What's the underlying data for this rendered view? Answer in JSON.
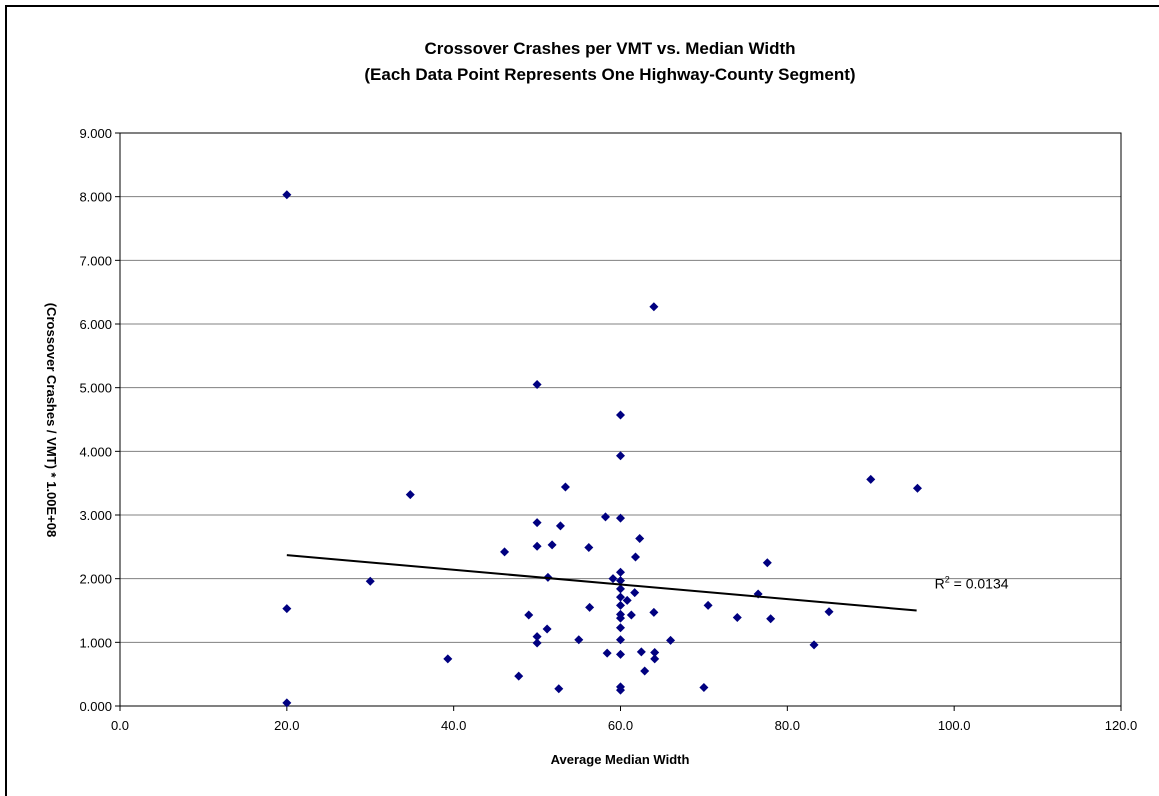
{
  "chart_data": {
    "type": "scatter",
    "title": "Crossover Crashes per VMT vs. Median Width",
    "subtitle": "(Each Data Point Represents One Highway-County Segment)",
    "xlabel": "Average Median Width",
    "ylabel": "(Crossover Crashes / VMT) * 1.00E+08",
    "xlim": [
      0,
      120
    ],
    "ylim": [
      0,
      9
    ],
    "x_ticks": [
      "0.0",
      "20.0",
      "40.0",
      "60.0",
      "80.0",
      "100.0",
      "120.0"
    ],
    "y_ticks": [
      "0.000",
      "1.000",
      "2.000",
      "3.000",
      "4.000",
      "5.000",
      "6.000",
      "7.000",
      "8.000",
      "9.000"
    ],
    "grid": "horizontal",
    "legend": "none",
    "marker_color": "#000080",
    "trendline": {
      "type": "linear",
      "x": [
        20,
        95.5
      ],
      "y": [
        2.37,
        1.5
      ],
      "r2_label": "R",
      "r2_sup": "2",
      "r2_value": " = 0.0134",
      "color": "#000000"
    },
    "points": [
      {
        "x": 20,
        "y": 8.03
      },
      {
        "x": 20,
        "y": 1.53
      },
      {
        "x": 20,
        "y": 0.05
      },
      {
        "x": 30,
        "y": 1.96
      },
      {
        "x": 34.8,
        "y": 3.32
      },
      {
        "x": 39.3,
        "y": 0.74
      },
      {
        "x": 46.1,
        "y": 2.42
      },
      {
        "x": 47.8,
        "y": 0.47
      },
      {
        "x": 49,
        "y": 1.43
      },
      {
        "x": 50,
        "y": 5.05
      },
      {
        "x": 50,
        "y": 2.88
      },
      {
        "x": 50,
        "y": 2.51
      },
      {
        "x": 50,
        "y": 1.09
      },
      {
        "x": 50,
        "y": 0.99
      },
      {
        "x": 51.2,
        "y": 1.21
      },
      {
        "x": 51.3,
        "y": 2.02
      },
      {
        "x": 51.8,
        "y": 2.53
      },
      {
        "x": 52.6,
        "y": 0.27
      },
      {
        "x": 52.8,
        "y": 2.83
      },
      {
        "x": 53.4,
        "y": 3.44
      },
      {
        "x": 55,
        "y": 1.04
      },
      {
        "x": 56.2,
        "y": 2.49
      },
      {
        "x": 56.3,
        "y": 1.55
      },
      {
        "x": 58.2,
        "y": 2.97
      },
      {
        "x": 58.4,
        "y": 0.83
      },
      {
        "x": 59.1,
        "y": 2.0
      },
      {
        "x": 60,
        "y": 4.57
      },
      {
        "x": 60,
        "y": 3.93
      },
      {
        "x": 60,
        "y": 2.95
      },
      {
        "x": 60,
        "y": 2.1
      },
      {
        "x": 60,
        "y": 1.97
      },
      {
        "x": 60,
        "y": 1.84
      },
      {
        "x": 60,
        "y": 1.71
      },
      {
        "x": 60,
        "y": 1.58
      },
      {
        "x": 60,
        "y": 1.44
      },
      {
        "x": 60,
        "y": 1.38
      },
      {
        "x": 60,
        "y": 1.23
      },
      {
        "x": 60,
        "y": 1.04
      },
      {
        "x": 60,
        "y": 0.81
      },
      {
        "x": 60,
        "y": 0.3
      },
      {
        "x": 60,
        "y": 0.25
      },
      {
        "x": 60.8,
        "y": 1.66
      },
      {
        "x": 61.3,
        "y": 1.43
      },
      {
        "x": 61.7,
        "y": 1.78
      },
      {
        "x": 61.8,
        "y": 2.34
      },
      {
        "x": 62.3,
        "y": 2.63
      },
      {
        "x": 62.5,
        "y": 0.85
      },
      {
        "x": 62.9,
        "y": 0.55
      },
      {
        "x": 64,
        "y": 6.27
      },
      {
        "x": 64,
        "y": 1.47
      },
      {
        "x": 64.1,
        "y": 0.84
      },
      {
        "x": 64.1,
        "y": 0.74
      },
      {
        "x": 66,
        "y": 1.03
      },
      {
        "x": 70,
        "y": 0.29
      },
      {
        "x": 70.5,
        "y": 1.58
      },
      {
        "x": 74,
        "y": 1.39
      },
      {
        "x": 76.5,
        "y": 1.76
      },
      {
        "x": 77.6,
        "y": 2.25
      },
      {
        "x": 78,
        "y": 1.37
      },
      {
        "x": 83.2,
        "y": 0.96
      },
      {
        "x": 85,
        "y": 1.48
      },
      {
        "x": 90,
        "y": 3.56
      },
      {
        "x": 95.6,
        "y": 3.42
      }
    ]
  }
}
